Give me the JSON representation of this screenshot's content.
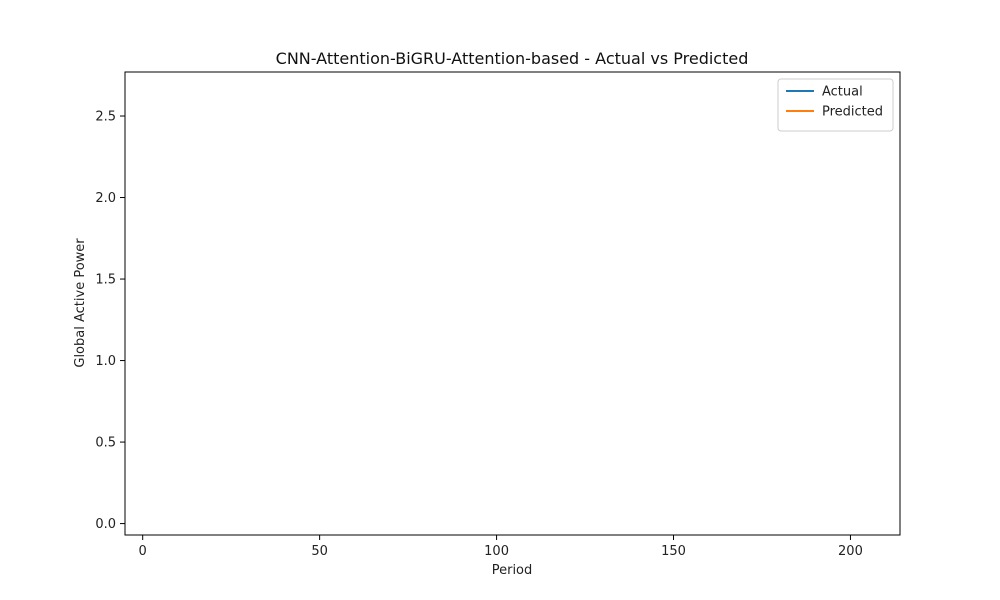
{
  "chart_data": {
    "type": "line",
    "title": "CNN-Attention-BiGRU-Attention-based - Actual vs Predicted",
    "xlabel": "Period",
    "ylabel": "Global Active Power",
    "xlim": [
      -5,
      214
    ],
    "ylim": [
      -0.07,
      2.77
    ],
    "xticks": [
      0,
      50,
      100,
      150,
      200
    ],
    "yticks": [
      0.0,
      0.5,
      1.0,
      1.5,
      2.0,
      2.5
    ],
    "grid": false,
    "legend_position": "top-right",
    "series": [
      {
        "name": "Actual",
        "color": "#1f77b4",
        "values": []
      },
      {
        "name": "Predicted",
        "color": "#ff7f0e",
        "values": []
      }
    ]
  }
}
